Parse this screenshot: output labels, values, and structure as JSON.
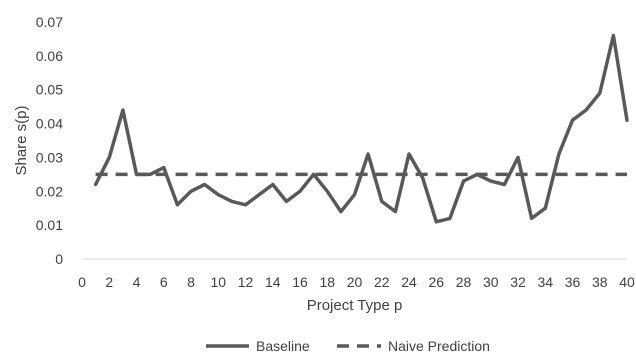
{
  "chart_data": {
    "type": "line",
    "title": "",
    "xlabel": "Project Type p",
    "ylabel": "Share s(p)",
    "xlim": [
      0,
      40
    ],
    "ylim": [
      0,
      0.07
    ],
    "x_ticks": [
      0,
      2,
      4,
      6,
      8,
      10,
      12,
      14,
      16,
      18,
      20,
      22,
      24,
      26,
      28,
      30,
      32,
      34,
      36,
      38,
      40
    ],
    "y_ticks": [
      0,
      0.01,
      0.02,
      0.03,
      0.04,
      0.05,
      0.06,
      0.07
    ],
    "y_tick_labels": [
      "0",
      "0.01",
      "0.02",
      "0.03",
      "0.04",
      "0.05",
      "0.06",
      "0.07"
    ],
    "grid": false,
    "legend_position": "bottom",
    "x": [
      1,
      2,
      3,
      4,
      5,
      6,
      7,
      8,
      9,
      10,
      11,
      12,
      13,
      14,
      15,
      16,
      17,
      18,
      19,
      20,
      21,
      22,
      23,
      24,
      25,
      26,
      27,
      28,
      29,
      30,
      31,
      32,
      33,
      34,
      35,
      36,
      37,
      38,
      39,
      40
    ],
    "series": [
      {
        "name": "Baseline",
        "style": "solid",
        "color": "#595959",
        "values": [
          0.022,
          0.03,
          0.044,
          0.025,
          0.025,
          0.027,
          0.016,
          0.02,
          0.022,
          0.019,
          0.017,
          0.016,
          0.019,
          0.022,
          0.017,
          0.02,
          0.025,
          0.02,
          0.014,
          0.019,
          0.031,
          0.017,
          0.014,
          0.031,
          0.024,
          0.011,
          0.012,
          0.023,
          0.025,
          0.023,
          0.022,
          0.03,
          0.012,
          0.015,
          0.031,
          0.041,
          0.044,
          0.049,
          0.066,
          0.041
        ]
      },
      {
        "name": "Naive Prediction",
        "style": "dashed",
        "color": "#595959",
        "values": [
          0.025,
          0.025,
          0.025,
          0.025,
          0.025,
          0.025,
          0.025,
          0.025,
          0.025,
          0.025,
          0.025,
          0.025,
          0.025,
          0.025,
          0.025,
          0.025,
          0.025,
          0.025,
          0.025,
          0.025,
          0.025,
          0.025,
          0.025,
          0.025,
          0.025,
          0.025,
          0.025,
          0.025,
          0.025,
          0.025,
          0.025,
          0.025,
          0.025,
          0.025,
          0.025,
          0.025,
          0.025,
          0.025,
          0.025,
          0.025
        ]
      }
    ]
  }
}
